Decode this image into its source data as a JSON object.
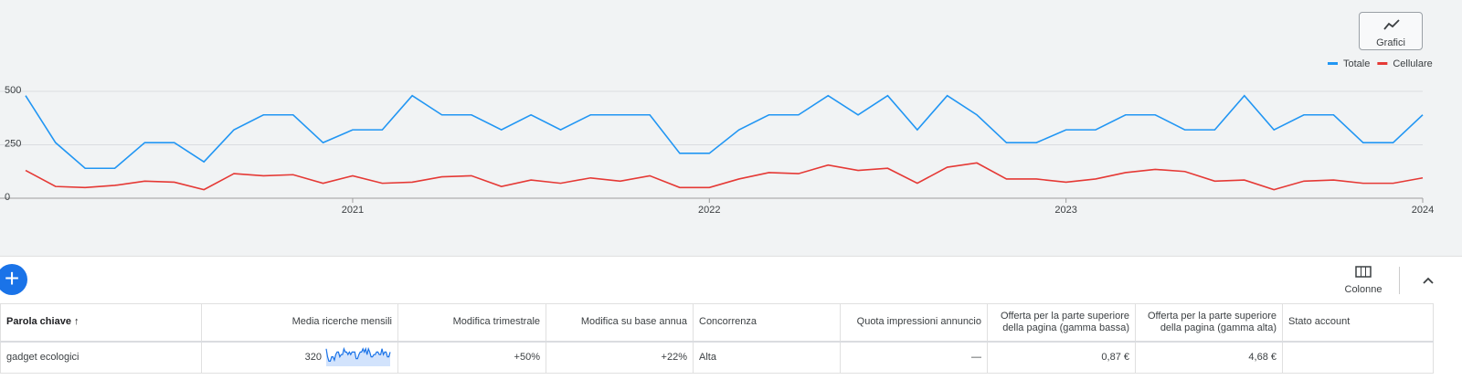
{
  "chart_data": {
    "type": "line",
    "x": [
      2020.083,
      2020.167,
      2020.25,
      2020.333,
      2020.417,
      2020.5,
      2020.583,
      2020.667,
      2020.75,
      2020.833,
      2020.917,
      2021,
      2021.083,
      2021.167,
      2021.25,
      2021.333,
      2021.417,
      2021.5,
      2021.583,
      2021.667,
      2021.75,
      2021.833,
      2021.917,
      2022,
      2022.083,
      2022.167,
      2022.25,
      2022.333,
      2022.417,
      2022.5,
      2022.583,
      2022.667,
      2022.75,
      2022.833,
      2022.917,
      2023,
      2023.083,
      2023.167,
      2023.25,
      2023.333,
      2023.417,
      2023.5,
      2023.583,
      2023.667,
      2023.75,
      2023.833,
      2023.917,
      2024
    ],
    "series": [
      {
        "name": "Totale",
        "color": "#2196f3",
        "values": [
          480,
          260,
          140,
          140,
          260,
          260,
          170,
          320,
          390,
          390,
          260,
          320,
          320,
          480,
          390,
          390,
          320,
          390,
          320,
          390,
          390,
          390,
          210,
          210,
          320,
          390,
          390,
          480,
          390,
          480,
          320,
          480,
          390,
          260,
          260,
          320,
          320,
          390,
          390,
          320,
          320,
          480,
          320,
          390,
          390,
          260,
          260,
          390
        ]
      },
      {
        "name": "Cellulare",
        "color": "#e53935",
        "values": [
          130,
          55,
          50,
          60,
          80,
          75,
          40,
          115,
          105,
          110,
          70,
          105,
          70,
          75,
          100,
          105,
          55,
          85,
          70,
          95,
          80,
          105,
          50,
          50,
          90,
          120,
          115,
          155,
          130,
          140,
          70,
          145,
          165,
          90,
          90,
          75,
          90,
          120,
          135,
          125,
          80,
          85,
          40,
          80,
          85,
          70,
          70,
          95
        ]
      }
    ],
    "xlim": [
      2020.083,
      2024
    ],
    "xticks": [
      2021,
      2022,
      2023,
      2024
    ],
    "ylim": [
      0,
      500
    ],
    "yticks": [
      0,
      250,
      500
    ],
    "grid": true,
    "legend": "top-right"
  },
  "toolbar": {
    "charts_button": "Grafici",
    "columns_button": "Colonne"
  },
  "table": {
    "headers": [
      "Parola chiave",
      "Media ricerche mensili",
      "Modifica trimestrale",
      "Modifica su base annua",
      "Concorrenza",
      "Quota impressioni annuncio",
      "Offerta per la parte superiore della pagina (gamma bassa)",
      "Offerta per la parte superiore della pagina (gamma alta)",
      "Stato account"
    ],
    "rows": [
      [
        "gadget ecologici",
        320,
        "+50%",
        "+22%",
        "Alta",
        "—",
        "0,87 €",
        "4,68 €"
      ]
    ]
  }
}
